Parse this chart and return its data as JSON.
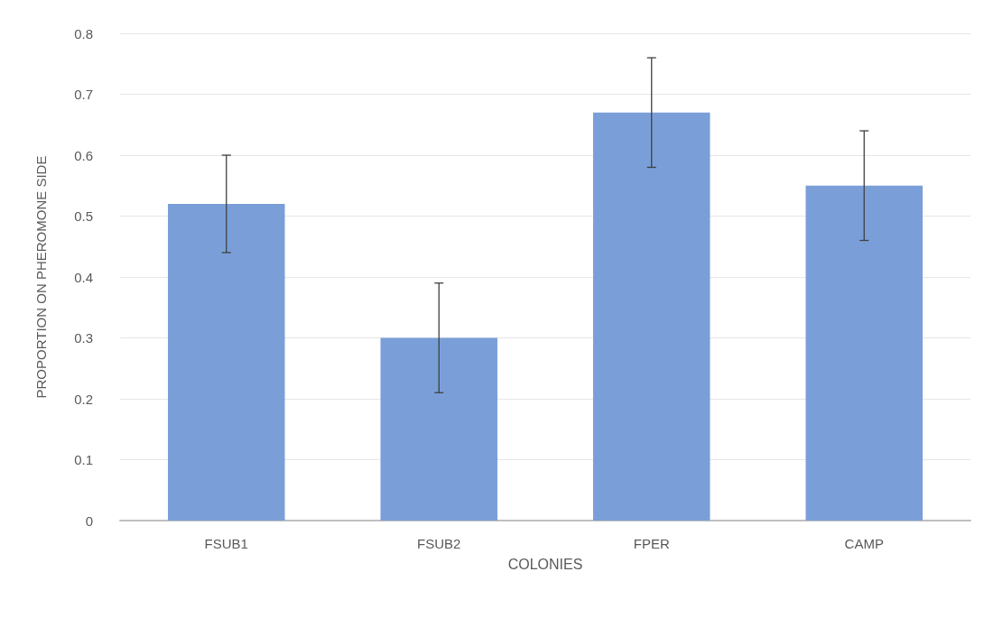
{
  "chart_data": {
    "type": "bar",
    "xlabel": "COLONIES",
    "ylabel": "PROPORTION ON PHEROMONE SIDE",
    "categories": [
      "FSUB1",
      "FSUB2",
      "FPER",
      "CAMP"
    ],
    "values": [
      0.52,
      0.3,
      0.67,
      0.55
    ],
    "errors": [
      0.08,
      0.09,
      0.09,
      0.09
    ],
    "color": "#7a9fd8",
    "ylim": [
      0,
      0.8
    ],
    "yticks": [
      0,
      0.1,
      0.2,
      0.3,
      0.4,
      0.5,
      0.6,
      0.7,
      0.8
    ],
    "grid": "y"
  }
}
